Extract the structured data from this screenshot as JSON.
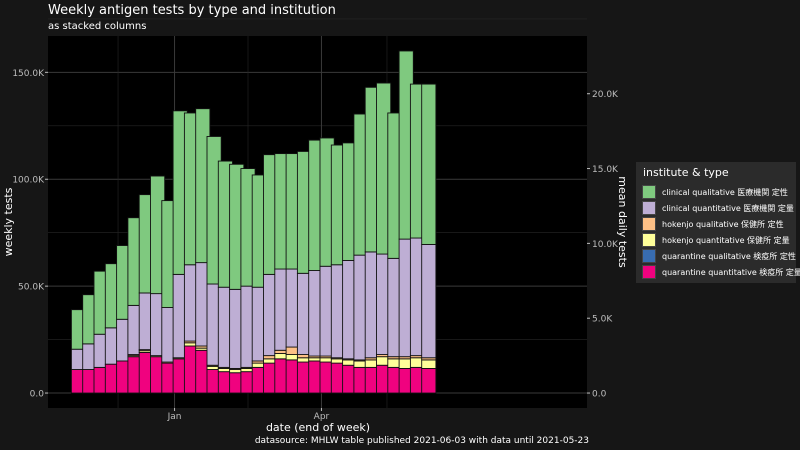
{
  "chart_data": {
    "type": "bar",
    "stacked": true,
    "title": "Weekly antigen tests by type and institution",
    "subtitle": "as stacked columns",
    "xlabel": "date (end of week)",
    "ylabel": "weekly tests",
    "ylabel_right": "mean daily tests",
    "caption": "datasource: MHLW table published 2021-06-03 with data until 2021-05-23",
    "legend_title": "institute & type",
    "legend_position": "right",
    "grid": true,
    "ylim": [
      -7000,
      167000
    ],
    "y_ticks": [
      0,
      50000,
      100000,
      150000
    ],
    "y_tick_labels": [
      "0.0",
      "50.0K",
      "100.0K",
      "150.0K"
    ],
    "y_ticks_right": [
      0,
      5000,
      10000,
      15000,
      20000
    ],
    "y_tick_labels_right": [
      "0.0",
      "5.0K",
      "10.0K",
      "15.0K",
      "20.0K"
    ],
    "x_tick_labels": [
      {
        "label": "Jan",
        "at_bar": 8.5
      },
      {
        "label": "Apr",
        "at_bar": 21.5
      }
    ],
    "x": [
      "2020-10-18",
      "2020-10-25",
      "2020-11-01",
      "2020-11-08",
      "2020-11-15",
      "2020-11-22",
      "2020-11-29",
      "2020-12-06",
      "2020-12-13",
      "2020-12-20",
      "2020-12-27",
      "2021-01-03",
      "2021-01-10",
      "2021-01-17",
      "2021-01-24",
      "2021-01-31",
      "2021-02-07",
      "2021-02-14",
      "2021-02-21",
      "2021-02-28",
      "2021-03-07",
      "2021-03-14",
      "2021-03-21",
      "2021-03-28",
      "2021-04-04",
      "2021-04-11",
      "2021-04-18",
      "2021-04-25",
      "2021-05-02",
      "2021-05-09",
      "2021-05-16",
      "2021-05-23"
    ],
    "series": [
      {
        "name": "quarantine quantitative 検疫所 定量",
        "color": "#f0027f",
        "values": [
          11000,
          11000,
          12000,
          13500,
          15000,
          17000,
          19000,
          17000,
          14000,
          16000,
          22000,
          20000,
          11000,
          10000,
          9500,
          10000,
          12000,
          14000,
          16000,
          15500,
          14500,
          15000,
          14500,
          14000,
          13000,
          12000,
          12000,
          13000,
          12000,
          11500,
          12000,
          11500
        ]
      },
      {
        "name": "quarantine qualitative 検疫所 定性",
        "color": "#386cb0",
        "values": [
          0,
          0,
          0,
          0,
          0,
          0,
          0,
          0,
          0,
          0,
          0,
          0,
          0,
          0,
          0,
          0,
          0,
          0,
          0,
          0,
          0,
          0,
          0,
          0,
          0,
          0,
          0,
          0,
          0,
          0,
          0,
          0
        ]
      },
      {
        "name": "hokenjo quantitative 保健所 定量",
        "color": "#ffff99",
        "values": [
          0,
          0,
          0,
          0,
          0,
          500,
          800,
          500,
          500,
          500,
          1500,
          1000,
          1500,
          1500,
          1500,
          1500,
          2000,
          2000,
          2500,
          2500,
          2000,
          1500,
          2000,
          2000,
          2500,
          3000,
          3500,
          4000,
          4000,
          4500,
          4500,
          4000
        ]
      },
      {
        "name": "hokenjo qualitative 保健所 定性",
        "color": "#fdc086",
        "values": [
          0,
          0,
          0,
          0,
          0,
          500,
          500,
          0,
          0,
          0,
          800,
          1000,
          500,
          500,
          500,
          500,
          1000,
          1500,
          1500,
          3500,
          1500,
          800,
          800,
          500,
          500,
          500,
          1000,
          1000,
          1000,
          1000,
          1000,
          1000
        ]
      },
      {
        "name": "clinical quantitative 医療機関 定量",
        "color": "#beaed4",
        "values": [
          9500,
          12000,
          15500,
          17000,
          19500,
          23000,
          26500,
          29000,
          25500,
          39000,
          35700,
          39000,
          38000,
          37500,
          37000,
          38000,
          34500,
          38000,
          38000,
          36500,
          38000,
          40000,
          42000,
          43500,
          46000,
          49000,
          49500,
          47000,
          46000,
          55000,
          55000,
          53000
        ]
      },
      {
        "name": "clinical qualitative 医療機関 定性",
        "color": "#7fc97f",
        "values": [
          18500,
          23000,
          29500,
          30000,
          34500,
          41000,
          46000,
          55000,
          50000,
          76500,
          71000,
          72000,
          69000,
          59000,
          58500,
          55000,
          52500,
          56000,
          54000,
          54000,
          57000,
          61000,
          60000,
          56000,
          55000,
          66000,
          77000,
          80000,
          68000,
          88000,
          72000,
          75000
        ]
      }
    ]
  }
}
